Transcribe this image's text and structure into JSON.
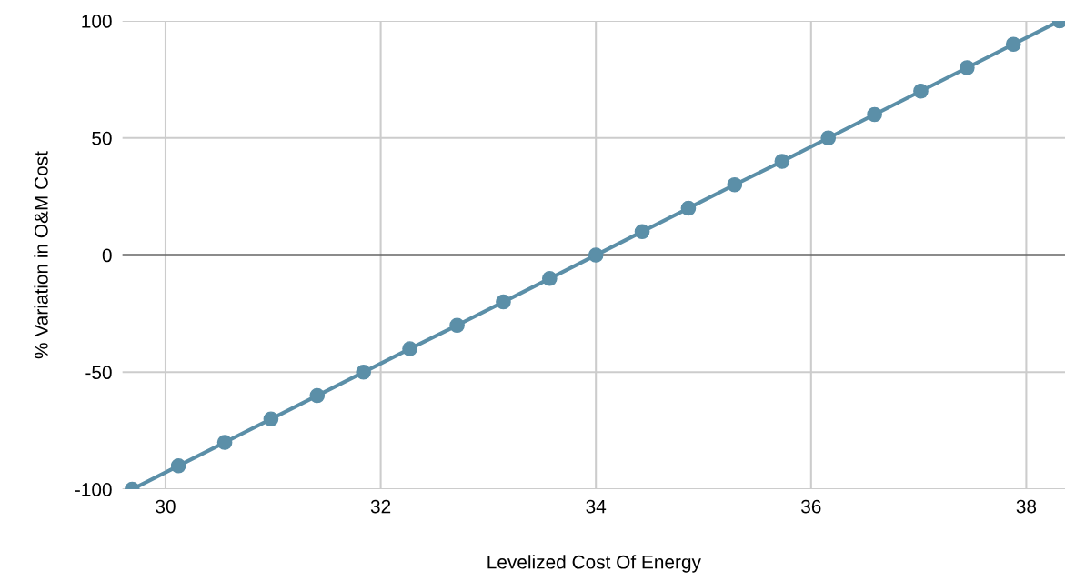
{
  "chart_data": {
    "type": "line",
    "xlabel": "Levelized Cost Of Energy",
    "ylabel": "% Variation in O&M Cost",
    "x": [
      29.69,
      30.12,
      30.55,
      30.98,
      31.41,
      31.84,
      32.27,
      32.71,
      33.14,
      33.57,
      34.0,
      34.43,
      34.86,
      35.29,
      35.73,
      36.16,
      36.59,
      37.02,
      37.45,
      37.88,
      38.31
    ],
    "series": [
      {
        "color": "#5b8fa8",
        "values": [
          -100,
          -90,
          -80,
          -70,
          -60,
          -50,
          -40,
          -30,
          -20,
          -10,
          0,
          10,
          20,
          30,
          40,
          50,
          60,
          70,
          80,
          90,
          100
        ]
      }
    ],
    "xlim": [
      29.6,
      38.36
    ],
    "ylim": [
      -100,
      100
    ],
    "xticks": [
      30,
      32,
      34,
      36,
      38
    ],
    "yticks": [
      -100,
      -50,
      0,
      50,
      100
    ],
    "ref_lines": [
      {
        "axis": "y",
        "value": 0,
        "color": "#333333"
      }
    ],
    "grid": true,
    "marker": "circle",
    "line_style": "solid",
    "legend": false
  }
}
